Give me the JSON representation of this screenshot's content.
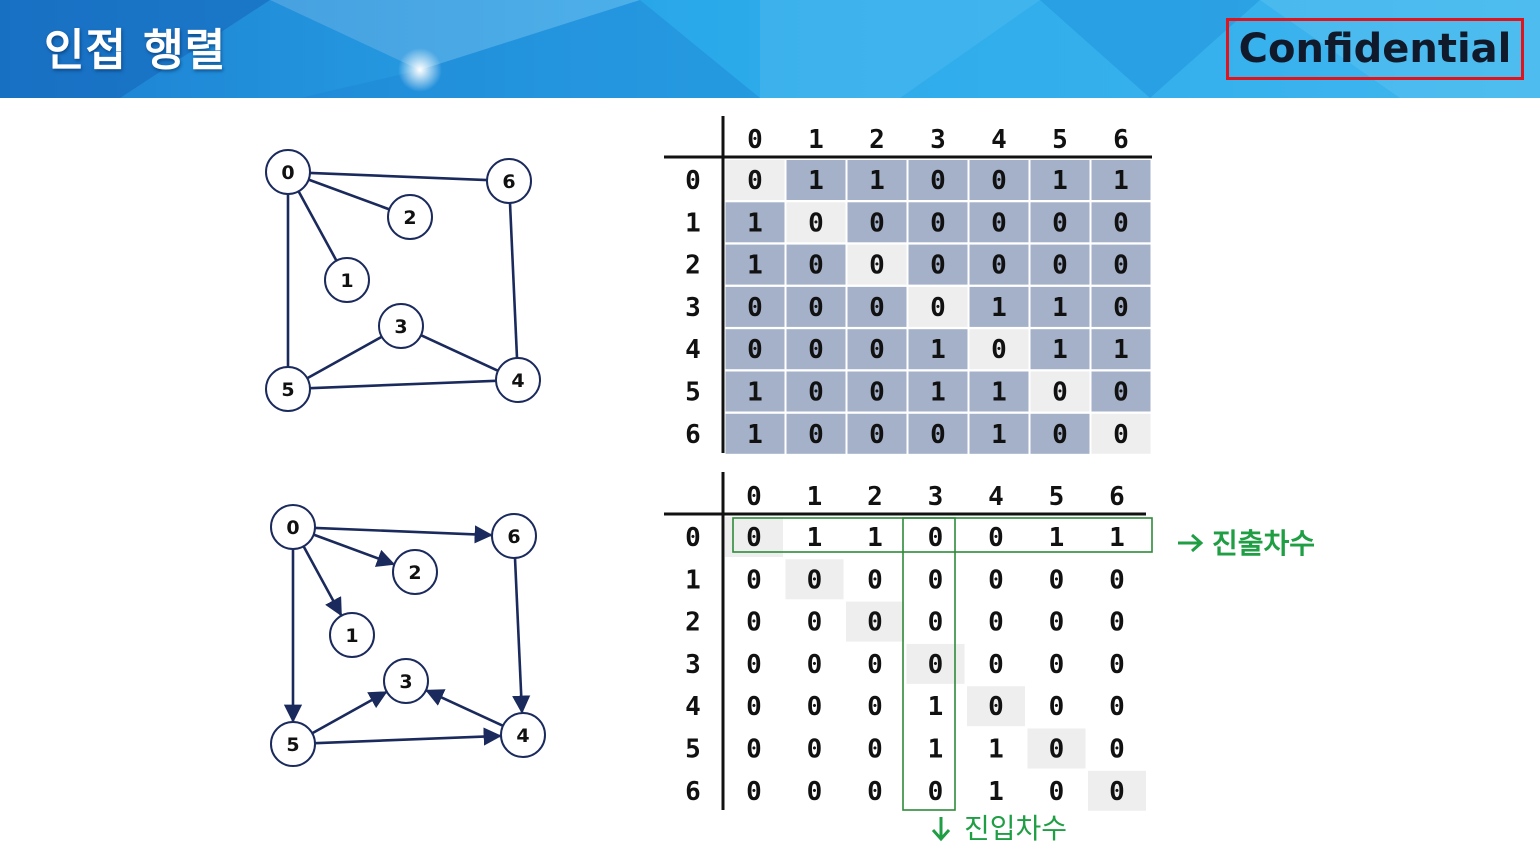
{
  "header": {
    "title": "인접 행렬",
    "badge": "Confidential"
  },
  "colors": {
    "node_stroke": "#1b2a5c",
    "cell_gray": "#a4b1c8",
    "cell_light": "#eeeeee",
    "highlight_box": "#2e8b3a",
    "annotation_text": "#1f9e44",
    "badge_border": "#e0141c"
  },
  "labels": [
    "0",
    "1",
    "2",
    "3",
    "4",
    "5",
    "6"
  ],
  "graphs": {
    "undirected": {
      "edges": [
        [
          0,
          6
        ],
        [
          0,
          2
        ],
        [
          0,
          1
        ],
        [
          0,
          5
        ],
        [
          6,
          4
        ],
        [
          3,
          5
        ],
        [
          3,
          4
        ],
        [
          5,
          4
        ]
      ]
    },
    "directed": {
      "edges": [
        [
          0,
          6
        ],
        [
          0,
          2
        ],
        [
          0,
          1
        ],
        [
          0,
          5
        ],
        [
          6,
          4
        ],
        [
          5,
          3
        ],
        [
          4,
          3
        ],
        [
          5,
          4
        ]
      ]
    }
  },
  "matrices": {
    "undirected": {
      "rows": [
        [
          0,
          1,
          1,
          0,
          0,
          1,
          1
        ],
        [
          1,
          0,
          0,
          0,
          0,
          0,
          0
        ],
        [
          1,
          0,
          0,
          0,
          0,
          0,
          0
        ],
        [
          0,
          0,
          0,
          0,
          1,
          1,
          0
        ],
        [
          0,
          0,
          0,
          1,
          0,
          1,
          1
        ],
        [
          1,
          0,
          0,
          1,
          1,
          0,
          0
        ],
        [
          1,
          0,
          0,
          0,
          1,
          0,
          0
        ]
      ]
    },
    "directed": {
      "rows": [
        [
          0,
          1,
          1,
          0,
          0,
          1,
          1
        ],
        [
          0,
          0,
          0,
          0,
          0,
          0,
          0
        ],
        [
          0,
          0,
          0,
          0,
          0,
          0,
          0
        ],
        [
          0,
          0,
          0,
          0,
          0,
          0,
          0
        ],
        [
          0,
          0,
          0,
          1,
          0,
          0,
          0
        ],
        [
          0,
          0,
          0,
          1,
          1,
          0,
          0
        ],
        [
          0,
          0,
          0,
          0,
          1,
          0,
          0
        ]
      ]
    }
  },
  "annotations": {
    "out_degree": "진출차수",
    "in_degree": "진입차수"
  }
}
